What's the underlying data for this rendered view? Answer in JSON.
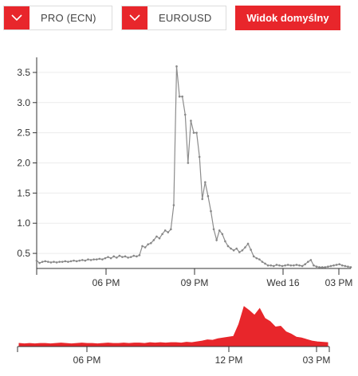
{
  "toolbar": {
    "account_type": "PRO (ECN)",
    "symbol": "EUROUSD",
    "default_view_label": "Widok domyślny"
  },
  "colors": {
    "accent": "#e8262b",
    "line": "#8c8c8c",
    "grid": "#ececec",
    "axis": "#333333"
  },
  "chart_data": [
    {
      "type": "line",
      "title": "",
      "xlabel": "",
      "ylabel": "",
      "x_ticks": [
        "06 PM",
        "09 PM",
        "Wed 16",
        "03 PM"
      ],
      "y_ticks": [
        "0.5",
        "1.0",
        "1.5",
        "2.0",
        "2.5",
        "3.0",
        "3.5"
      ],
      "ylim": [
        0.25,
        3.75
      ],
      "grid": true,
      "x": [
        0,
        0.2,
        0.4,
        0.6,
        0.8,
        1.0,
        1.2,
        1.4,
        1.6,
        1.8,
        2.0,
        2.2,
        2.4,
        2.6,
        2.8,
        3.0,
        3.2,
        3.4,
        3.6,
        3.8,
        4.0,
        4.2,
        4.4,
        4.6,
        4.8,
        5.0,
        5.2,
        5.4,
        5.6,
        5.8,
        6.0,
        6.2,
        6.4,
        6.6,
        6.8,
        7.0,
        7.2,
        7.4,
        7.6,
        7.8,
        8.0,
        8.2,
        8.4,
        8.6,
        8.8,
        9.0,
        9.2,
        9.4,
        9.6,
        9.8,
        10.0,
        10.2,
        10.4,
        10.6,
        10.8,
        11.0,
        11.2,
        11.4,
        11.6,
        11.8,
        12.0,
        12.2,
        12.4,
        12.6,
        12.8,
        13.0,
        13.2,
        13.4,
        13.6,
        13.8,
        14.0,
        14.2,
        14.4,
        14.6,
        14.8,
        15.0,
        15.2,
        15.4,
        15.6,
        15.8,
        16.0,
        16.2,
        16.4,
        16.6,
        16.8,
        17.0,
        17.2,
        17.4,
        17.6,
        17.8,
        18.0,
        18.2,
        18.4,
        18.6,
        18.8,
        19.0,
        19.2,
        19.4,
        19.6,
        19.8,
        20.0,
        20.2,
        20.4,
        20.6,
        20.8,
        21.0,
        21.2,
        21.4,
        21.6,
        21.8,
        22.0
      ],
      "series": [
        {
          "values": [
            0.38,
            0.34,
            0.36,
            0.37,
            0.36,
            0.35,
            0.36,
            0.35,
            0.36,
            0.36,
            0.37,
            0.36,
            0.37,
            0.38,
            0.37,
            0.38,
            0.39,
            0.38,
            0.4,
            0.39,
            0.4,
            0.4,
            0.41,
            0.4,
            0.42,
            0.44,
            0.42,
            0.45,
            0.43,
            0.46,
            0.44,
            0.45,
            0.43,
            0.44,
            0.46,
            0.45,
            0.47,
            0.62,
            0.6,
            0.65,
            0.67,
            0.72,
            0.78,
            0.75,
            0.82,
            0.88,
            0.85,
            0.9,
            1.3,
            3.6,
            3.1,
            3.1,
            2.8,
            2.0,
            2.7,
            2.5,
            2.5,
            2.1,
            1.4,
            1.68,
            1.45,
            1.2,
            0.9,
            0.72,
            0.88,
            0.82,
            0.7,
            0.62,
            0.58,
            0.55,
            0.58,
            0.52,
            0.55,
            0.6,
            0.66,
            0.56,
            0.45,
            0.42,
            0.4,
            0.36,
            0.33,
            0.3,
            0.3,
            0.29,
            0.31,
            0.3,
            0.29,
            0.3,
            0.31,
            0.3,
            0.3,
            0.31,
            0.3,
            0.29,
            0.32,
            0.36,
            0.39,
            0.3,
            0.28,
            0.27,
            0.27,
            0.27,
            0.28,
            0.29,
            0.3,
            0.31,
            0.32,
            0.3,
            0.29,
            0.28,
            0.27
          ]
        }
      ]
    },
    {
      "type": "area",
      "title": "",
      "x_ticks": [
        "06 PM",
        "12 PM",
        "03 PM"
      ],
      "x": [
        0,
        1,
        2,
        3,
        4,
        5,
        6,
        7,
        8,
        9,
        10,
        11,
        12,
        13,
        14,
        15,
        16,
        17,
        18,
        19,
        20,
        21,
        22,
        23,
        24,
        25,
        26,
        27,
        28,
        29,
        30,
        31,
        32,
        33,
        34,
        35,
        36,
        37,
        38,
        39,
        40,
        41,
        42,
        43,
        44,
        45,
        46,
        47,
        48,
        49,
        50,
        51,
        52,
        53,
        54,
        55,
        56,
        57,
        58,
        59
      ],
      "series": [
        {
          "values": [
            0.06,
            0.05,
            0.06,
            0.05,
            0.06,
            0.06,
            0.05,
            0.06,
            0.07,
            0.06,
            0.05,
            0.06,
            0.07,
            0.06,
            0.06,
            0.05,
            0.06,
            0.07,
            0.06,
            0.06,
            0.07,
            0.06,
            0.07,
            0.07,
            0.06,
            0.08,
            0.07,
            0.08,
            0.07,
            0.08,
            0.08,
            0.07,
            0.09,
            0.08,
            0.1,
            0.12,
            0.15,
            0.14,
            0.18,
            0.2,
            0.22,
            0.24,
            0.55,
            1.0,
            0.9,
            0.78,
            0.95,
            0.7,
            0.62,
            0.48,
            0.5,
            0.36,
            0.3,
            0.22,
            0.2,
            0.16,
            0.12,
            0.1,
            0.09,
            0.08
          ]
        }
      ]
    }
  ]
}
